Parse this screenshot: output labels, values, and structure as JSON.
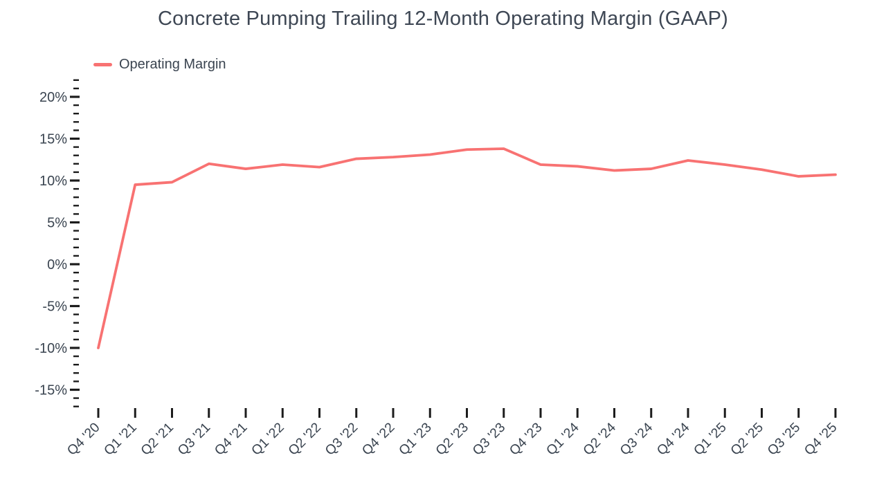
{
  "title": "Concrete Pumping Trailing 12-Month Operating Margin (GAAP)",
  "legend": {
    "label": "Operating Margin"
  },
  "colors": {
    "line": "#f87272",
    "text": "#3a4450",
    "tick": "#1c1c1c"
  },
  "chart_data": {
    "type": "line",
    "title": "Concrete Pumping Trailing 12-Month Operating Margin (GAAP)",
    "xlabel": "",
    "ylabel": "",
    "legend_position": "top-left",
    "grid": false,
    "categories": [
      "Q4 '20",
      "Q1 '21",
      "Q2 '21",
      "Q3 '21",
      "Q4 '21",
      "Q1 '22",
      "Q2 '22",
      "Q3 '22",
      "Q4 '22",
      "Q1 '23",
      "Q2 '23",
      "Q3 '23",
      "Q4 '23",
      "Q1 '24",
      "Q2 '24",
      "Q3 '24",
      "Q4 '24",
      "Q1 '25",
      "Q2 '25",
      "Q3 '25",
      "Q4 '25"
    ],
    "series": [
      {
        "name": "Operating Margin",
        "values": [
          -10.0,
          9.5,
          9.8,
          12.0,
          11.4,
          11.9,
          11.6,
          12.6,
          12.8,
          13.1,
          13.7,
          13.8,
          11.9,
          11.7,
          11.2,
          11.4,
          12.4,
          11.9,
          11.3,
          10.5,
          10.7
        ]
      }
    ],
    "y_tick_labels": [
      "20%",
      "15%",
      "10%",
      "5%",
      "0%",
      "-5%",
      "-10%",
      "-15%"
    ],
    "y_tick_values": [
      20,
      15,
      10,
      5,
      0,
      -5,
      -10,
      -15
    ],
    "ylim": [
      -17,
      22
    ],
    "y_minor_step": 1,
    "unit": "%"
  }
}
